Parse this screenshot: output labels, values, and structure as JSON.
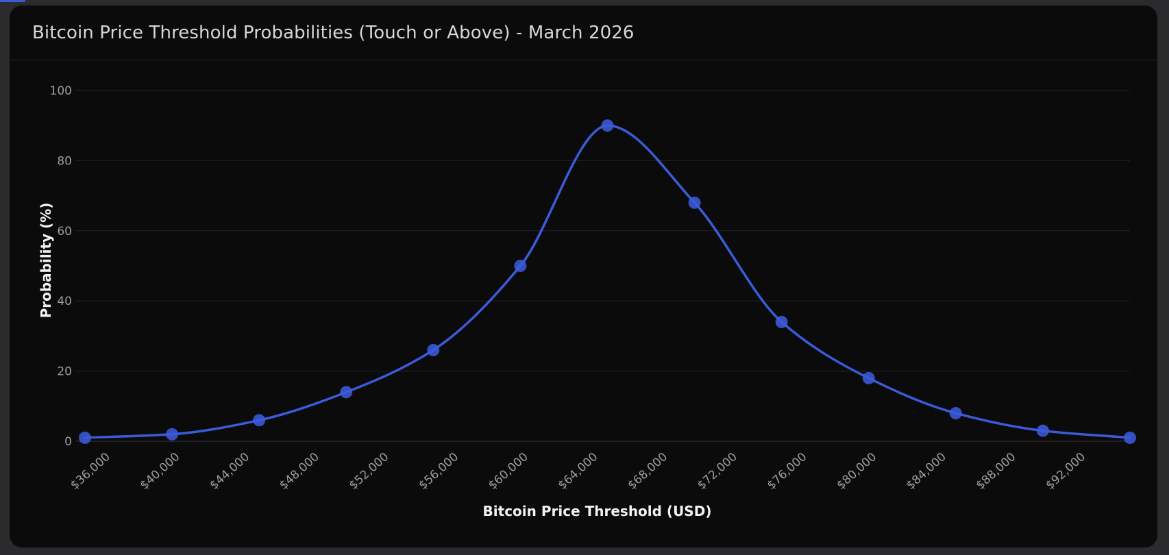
{
  "title": "Bitcoin Price Threshold Probabilities (Touch or Above) - March 2026",
  "chart_data": {
    "type": "line",
    "title": "Bitcoin Price Threshold Probabilities (Touch or Above) - March 2026",
    "xlabel": "Bitcoin Price Threshold (USD)",
    "ylabel": "Probability (%)",
    "xlim": [
      35000,
      95000
    ],
    "ylim": [
      0,
      100
    ],
    "yticks": [
      0,
      20,
      40,
      60,
      80,
      100
    ],
    "xticks": [
      36000,
      40000,
      44000,
      48000,
      52000,
      56000,
      60000,
      64000,
      68000,
      72000,
      76000,
      80000,
      84000,
      88000,
      92000
    ],
    "xtick_labels": [
      "$36,000",
      "$40,000",
      "$44,000",
      "$48,000",
      "$52,000",
      "$56,000",
      "$60,000",
      "$64,000",
      "$68,000",
      "$72,000",
      "$76,000",
      "$80,000",
      "$84,000",
      "$88,000",
      "$92,000"
    ],
    "grid": true,
    "series": [
      {
        "color": "#3b5bd9",
        "x": [
          35000,
          40000,
          45000,
          50000,
          55000,
          60000,
          65000,
          70000,
          75000,
          80000,
          85000,
          90000,
          95000
        ],
        "values": [
          1,
          2,
          6,
          14,
          26,
          50,
          90,
          68,
          34,
          18,
          8,
          3,
          1
        ]
      }
    ]
  }
}
